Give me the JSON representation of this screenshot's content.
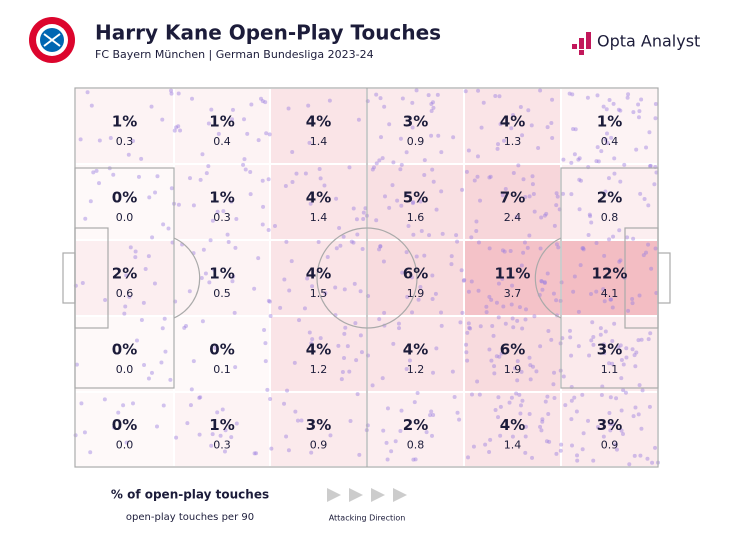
{
  "header": {
    "title": "Harry Kane Open-Play Touches",
    "subtitle": "FC Bayern München | German Bundesliga 2023-24",
    "brand": "Opta Analyst"
  },
  "zones": [
    [
      {
        "pct": "1%",
        "per90": "0.3"
      },
      {
        "pct": "1%",
        "per90": "0.4"
      },
      {
        "pct": "4%",
        "per90": "1.4"
      },
      {
        "pct": "3%",
        "per90": "0.9"
      },
      {
        "pct": "4%",
        "per90": "1.3"
      },
      {
        "pct": "1%",
        "per90": "0.4"
      }
    ],
    [
      {
        "pct": "0%",
        "per90": "0.0"
      },
      {
        "pct": "1%",
        "per90": "0.3"
      },
      {
        "pct": "4%",
        "per90": "1.4"
      },
      {
        "pct": "5%",
        "per90": "1.6"
      },
      {
        "pct": "7%",
        "per90": "2.4"
      },
      {
        "pct": "2%",
        "per90": "0.8"
      }
    ],
    [
      {
        "pct": "2%",
        "per90": "0.6"
      },
      {
        "pct": "1%",
        "per90": "0.5"
      },
      {
        "pct": "4%",
        "per90": "1.5"
      },
      {
        "pct": "6%",
        "per90": "1.9"
      },
      {
        "pct": "11%",
        "per90": "3.7"
      },
      {
        "pct": "12%",
        "per90": "4.1"
      }
    ],
    [
      {
        "pct": "0%",
        "per90": "0.0"
      },
      {
        "pct": "0%",
        "per90": "0.1"
      },
      {
        "pct": "4%",
        "per90": "1.2"
      },
      {
        "pct": "4%",
        "per90": "1.2"
      },
      {
        "pct": "6%",
        "per90": "1.9"
      },
      {
        "pct": "3%",
        "per90": "1.1"
      }
    ],
    [
      {
        "pct": "0%",
        "per90": "0.0"
      },
      {
        "pct": "1%",
        "per90": "0.3"
      },
      {
        "pct": "3%",
        "per90": "0.9"
      },
      {
        "pct": "2%",
        "per90": "0.8"
      },
      {
        "pct": "4%",
        "per90": "1.4"
      },
      {
        "pct": "3%",
        "per90": "0.9"
      }
    ]
  ],
  "legend": {
    "primary": "% of open-play touches",
    "secondary": "open-play touches per 90",
    "direction": "Attacking Direction"
  }
}
